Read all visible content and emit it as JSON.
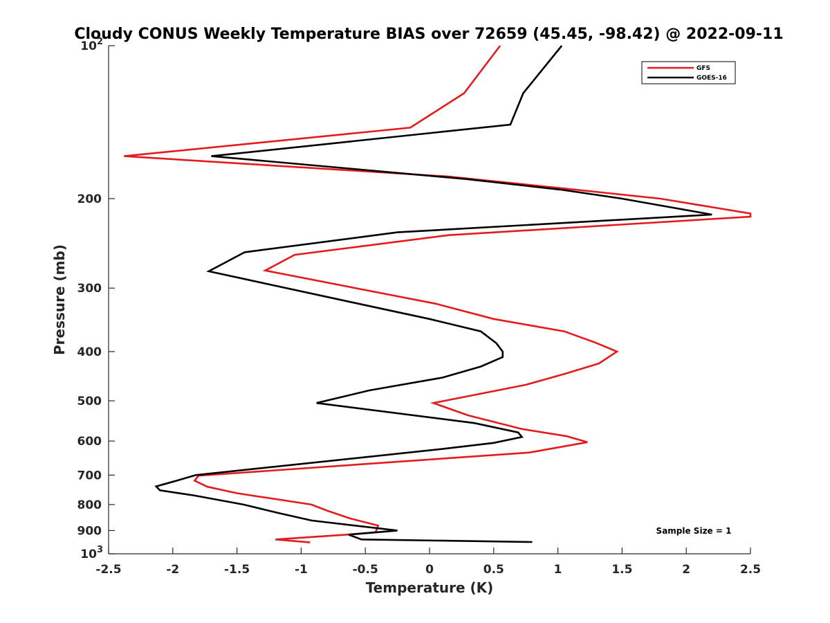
{
  "chart_data": {
    "type": "line",
    "title": "Cloudy CONUS Weekly Temperature BIAS over 72659 (45.45, -98.42) @ 2022-09-11",
    "xlabel": "Temperature (K)",
    "ylabel": "Pressure (mb)",
    "xlim": [
      -2.5,
      2.5
    ],
    "ylim": [
      100,
      1000
    ],
    "y_scale": "log",
    "y_reversed": true,
    "grid": false,
    "legend_position": "top-right",
    "x_ticks": [
      "-2.5",
      "-2",
      "-1.5",
      "-1",
      "-0.5",
      "0",
      "0.5",
      "1",
      "1.5",
      "2",
      "2.5"
    ],
    "x_tick_values": [
      -2.5,
      -2,
      -1.5,
      -1,
      -0.5,
      0,
      0.5,
      1,
      1.5,
      2,
      2.5
    ],
    "y_ticks": [
      {
        "value": 100,
        "label": "10",
        "sup": "2"
      },
      {
        "value": 200,
        "label": "200",
        "sup": ""
      },
      {
        "value": 300,
        "label": "300",
        "sup": ""
      },
      {
        "value": 400,
        "label": "400",
        "sup": ""
      },
      {
        "value": 500,
        "label": "500",
        "sup": ""
      },
      {
        "value": 600,
        "label": "600",
        "sup": ""
      },
      {
        "value": 700,
        "label": "700",
        "sup": ""
      },
      {
        "value": 800,
        "label": "800",
        "sup": ""
      },
      {
        "value": 900,
        "label": "900",
        "sup": ""
      },
      {
        "value": 1000,
        "label": "10",
        "sup": "3"
      }
    ],
    "series": [
      {
        "name": "GFS",
        "color": "#e41a1c",
        "points": [
          [
            0.55,
            100
          ],
          [
            0.27,
            124
          ],
          [
            -0.15,
            145
          ],
          [
            -2.38,
            165
          ],
          [
            0.15,
            181
          ],
          [
            1.05,
            191
          ],
          [
            1.8,
            200
          ],
          [
            2.5,
            214
          ],
          [
            2.5,
            217
          ],
          [
            0.15,
            236
          ],
          [
            -1.05,
            258
          ],
          [
            -1.28,
            277
          ],
          [
            0.05,
            322
          ],
          [
            0.5,
            345
          ],
          [
            1.05,
            365
          ],
          [
            1.28,
            383
          ],
          [
            1.46,
            400
          ],
          [
            1.32,
            422
          ],
          [
            1.06,
            442
          ],
          [
            0.75,
            465
          ],
          [
            0.03,
            505
          ],
          [
            0.3,
            534
          ],
          [
            0.72,
            568
          ],
          [
            1.07,
            587
          ],
          [
            1.23,
            603
          ],
          [
            0.78,
            632
          ],
          [
            -1.8,
            702
          ],
          [
            -1.83,
            718
          ],
          [
            -1.73,
            738
          ],
          [
            -1.5,
            760
          ],
          [
            -0.92,
            800
          ],
          [
            -0.8,
            822
          ],
          [
            -0.62,
            852
          ],
          [
            -0.4,
            880
          ],
          [
            -0.42,
            907
          ],
          [
            -0.65,
            917
          ],
          [
            -1.2,
            937
          ],
          [
            -0.93,
            950
          ]
        ]
      },
      {
        "name": "GOES-16",
        "color": "#000000",
        "points": [
          [
            1.03,
            100
          ],
          [
            0.73,
            124
          ],
          [
            0.63,
            143
          ],
          [
            -1.7,
            165
          ],
          [
            0.28,
            183
          ],
          [
            1.02,
            192
          ],
          [
            1.5,
            200
          ],
          [
            2.2,
            215
          ],
          [
            -0.25,
            233
          ],
          [
            -1.44,
            255
          ],
          [
            -1.72,
            278
          ],
          [
            -0.43,
            327
          ],
          [
            0.0,
            345
          ],
          [
            0.4,
            365
          ],
          [
            0.52,
            385
          ],
          [
            0.57,
            400
          ],
          [
            0.57,
            410
          ],
          [
            0.4,
            428
          ],
          [
            0.1,
            450
          ],
          [
            -0.47,
            477
          ],
          [
            -0.88,
            505
          ],
          [
            0.35,
            553
          ],
          [
            0.69,
            577
          ],
          [
            0.72,
            589
          ],
          [
            0.5,
            605
          ],
          [
            0.1,
            622
          ],
          [
            -1.82,
            700
          ],
          [
            -1.97,
            718
          ],
          [
            -2.13,
            737
          ],
          [
            -2.1,
            750
          ],
          [
            -1.83,
            768
          ],
          [
            -1.45,
            800
          ],
          [
            -1.17,
            832
          ],
          [
            -0.92,
            860
          ],
          [
            -0.25,
            900
          ],
          [
            -0.63,
            917
          ],
          [
            -0.53,
            937
          ],
          [
            0.8,
            948
          ]
        ]
      }
    ],
    "legend": [
      {
        "label": "GFS",
        "color": "#e41a1c"
      },
      {
        "label": "GOES-16",
        "color": "#000000"
      }
    ],
    "annotations": [
      {
        "text": "Sample Size = 1",
        "position": "bottom-right"
      }
    ]
  }
}
